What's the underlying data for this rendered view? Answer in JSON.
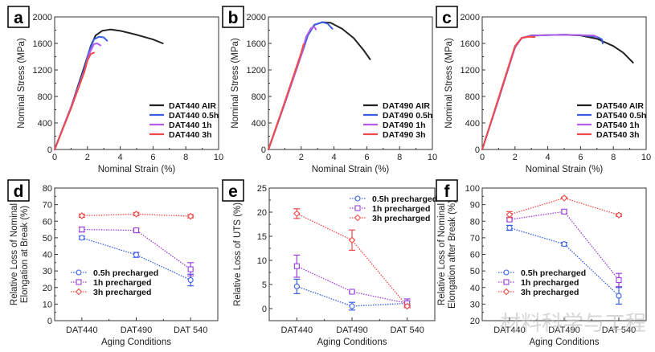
{
  "panels_meta": {
    "watermark": "材料科学与工程"
  },
  "chart_data": [
    {
      "id": "a",
      "panel_label": "a",
      "type": "line",
      "xlabel": "Nominal Strain (%)",
      "ylabel": "Nominal Stress (MPa)",
      "xlim": [
        0,
        10
      ],
      "ylim": [
        0,
        2000
      ],
      "xticks": [
        0,
        2,
        4,
        6,
        8,
        10
      ],
      "yticks": [
        0,
        400,
        800,
        1200,
        1600,
        2000
      ],
      "legend_position": "bottom-right",
      "series": [
        {
          "name": "DAT440 AIR",
          "color": "#222222",
          "x": [
            0,
            1,
            1.8,
            2.2,
            2.5,
            2.9,
            3.4,
            4,
            5,
            6,
            6.6
          ],
          "y": [
            0,
            640,
            1240,
            1560,
            1720,
            1790,
            1810,
            1790,
            1730,
            1660,
            1600
          ]
        },
        {
          "name": "DAT440 0.5h",
          "color": "#3a5fe5",
          "x": [
            0,
            1,
            1.8,
            2.1,
            2.4,
            2.7,
            3,
            3.2
          ],
          "y": [
            0,
            640,
            1200,
            1480,
            1660,
            1700,
            1690,
            1640
          ]
        },
        {
          "name": "DAT440 1h",
          "color": "#b25ee8",
          "x": [
            0,
            1,
            1.8,
            2.1,
            2.4,
            2.6,
            2.8
          ],
          "y": [
            0,
            640,
            1180,
            1440,
            1590,
            1600,
            1570
          ]
        },
        {
          "name": "DAT440 3h",
          "color": "#f04a4a",
          "x": [
            0,
            1,
            1.8,
            2.0,
            2.2,
            2.4
          ],
          "y": [
            0,
            620,
            1160,
            1340,
            1440,
            1460
          ]
        }
      ]
    },
    {
      "id": "b",
      "panel_label": "b",
      "type": "line",
      "xlabel": "Nominal Strain (%)",
      "ylabel": "Nominal Stress (MPa)",
      "xlim": [
        0,
        10
      ],
      "ylim": [
        0,
        2000
      ],
      "xticks": [
        0,
        2,
        4,
        6,
        8,
        10
      ],
      "yticks": [
        0,
        400,
        800,
        1200,
        1600,
        2000
      ],
      "legend_position": "bottom-right",
      "series": [
        {
          "name": "DAT490 AIR",
          "color": "#222222",
          "x": [
            0,
            1,
            2,
            2.4,
            2.8,
            3.3,
            3.8,
            4.5,
            5.2,
            5.8,
            6.2
          ],
          "y": [
            0,
            700,
            1420,
            1720,
            1880,
            1920,
            1910,
            1820,
            1680,
            1500,
            1360
          ]
        },
        {
          "name": "DAT490 0.5h",
          "color": "#3a5fe5",
          "x": [
            0,
            1,
            2,
            2.4,
            2.8,
            3.3,
            3.6,
            3.9
          ],
          "y": [
            0,
            700,
            1420,
            1720,
            1880,
            1920,
            1900,
            1820
          ]
        },
        {
          "name": "DAT490 1h",
          "color": "#b25ee8",
          "x": [
            0,
            1,
            2,
            2.3,
            2.6,
            2.8,
            2.9
          ],
          "y": [
            0,
            700,
            1420,
            1700,
            1830,
            1850,
            1810
          ]
        },
        {
          "name": "DAT490 3h",
          "color": "#f04a4a",
          "x": [
            0,
            1,
            2,
            2.15
          ],
          "y": [
            0,
            720,
            1460,
            1590
          ]
        }
      ]
    },
    {
      "id": "c",
      "panel_label": "c",
      "type": "line",
      "xlabel": "Nominal Strain (%)",
      "ylabel": "Nominal Stress (MPa)",
      "xlim": [
        0,
        10
      ],
      "ylim": [
        0,
        2000
      ],
      "xticks": [
        0,
        2,
        4,
        6,
        8,
        10
      ],
      "yticks": [
        0,
        400,
        800,
        1200,
        1600,
        2000
      ],
      "legend_position": "bottom-right",
      "series": [
        {
          "name": "DAT540 AIR",
          "color": "#222222",
          "x": [
            0,
            1,
            2,
            2.4,
            3,
            4,
            5,
            6,
            7,
            8,
            8.6,
            9.2
          ],
          "y": [
            0,
            760,
            1540,
            1680,
            1720,
            1725,
            1730,
            1720,
            1670,
            1560,
            1460,
            1310
          ]
        },
        {
          "name": "DAT540 0.5h",
          "color": "#3a5fe5",
          "x": [
            0,
            1,
            2,
            2.4,
            3,
            4,
            5,
            6,
            7,
            7.3,
            7.35
          ],
          "y": [
            0,
            760,
            1540,
            1680,
            1715,
            1725,
            1730,
            1725,
            1700,
            1660,
            1600
          ]
        },
        {
          "name": "DAT540 1h",
          "color": "#b25ee8",
          "x": [
            0,
            1,
            2,
            2.4,
            3,
            4,
            5,
            6,
            6.8,
            7.0
          ],
          "y": [
            0,
            760,
            1540,
            1680,
            1715,
            1725,
            1730,
            1725,
            1720,
            1700
          ]
        },
        {
          "name": "DAT540 3h",
          "color": "#f04a4a",
          "x": [
            0,
            1,
            2,
            2.4,
            2.8,
            3.2
          ],
          "y": [
            0,
            780,
            1560,
            1680,
            1700,
            1695
          ]
        }
      ]
    },
    {
      "id": "d",
      "panel_label": "d",
      "type": "line",
      "xlabel": "Aging Conditions",
      "ylabel": "Relative Loss of Nominal Elongation at Break (%)",
      "ylabel_lines": [
        "Relative Loss of Nominal",
        "Elongation at Break (%)"
      ],
      "categories": [
        "DAT440",
        "DAT490",
        "DAT 540"
      ],
      "ylim": [
        0,
        80
      ],
      "yticks": [
        0,
        10,
        20,
        30,
        40,
        50,
        60,
        70,
        80
      ],
      "legend_position": "bottom-left",
      "series": [
        {
          "name": "0.5h precharged",
          "color": "#3a5fe5",
          "marker": "circle",
          "values": [
            50,
            39.7,
            24.5
          ],
          "errors": [
            1,
            1.5,
            3.5
          ]
        },
        {
          "name": "1h precharged",
          "color": "#9b3fd8",
          "marker": "square",
          "values": [
            55,
            54.5,
            31
          ],
          "errors": [
            1.5,
            1,
            4
          ]
        },
        {
          "name": "3h precharged",
          "color": "#f04a4a",
          "marker": "diamond",
          "values": [
            63.3,
            64.3,
            63
          ],
          "errors": [
            1,
            1,
            1
          ]
        }
      ]
    },
    {
      "id": "e",
      "panel_label": "e",
      "type": "line",
      "xlabel": "Aging Conditions",
      "ylabel": "Relative Loss of UTS (%)",
      "ylabel_lines": [
        "Relative Loss of UTS (%)"
      ],
      "categories": [
        "DAT440",
        "DAT490",
        "DAT 540"
      ],
      "ylim": [
        -2.5,
        25
      ],
      "yticks": [
        0,
        5,
        10,
        15,
        20,
        25
      ],
      "legend_position": "top-right",
      "series": [
        {
          "name": "0.5h precharged",
          "color": "#3a5fe5",
          "marker": "circle",
          "values": [
            4.6,
            0.5,
            1.1
          ],
          "errors": [
            1.5,
            0.8,
            0.5
          ]
        },
        {
          "name": "1h precharged",
          "color": "#9b3fd8",
          "marker": "square",
          "values": [
            8.8,
            3.5,
            1.1
          ],
          "errors": [
            2.3,
            0.2,
            0.9
          ]
        },
        {
          "name": "3h precharged",
          "color": "#f04a4a",
          "marker": "diamond",
          "values": [
            19.7,
            14.2,
            0.5
          ],
          "errors": [
            1,
            2.1,
            0.3
          ]
        }
      ]
    },
    {
      "id": "f",
      "panel_label": "f",
      "type": "line",
      "xlabel": "Aging Conditions",
      "ylabel": "Relative Loss of Nominal Elongation after Break (%)",
      "ylabel_lines": [
        "Relative Loss of Nominal",
        "Elongation after Break (%)"
      ],
      "categories": [
        "DAT440",
        "DAT490",
        "DAT 540"
      ],
      "ylim": [
        20,
        100
      ],
      "yticks": [
        20,
        30,
        40,
        50,
        60,
        70,
        80,
        90,
        100
      ],
      "legend_position": "bottom-left",
      "series": [
        {
          "name": "0.5h precharged",
          "color": "#3a5fe5",
          "marker": "circle",
          "values": [
            76,
            66.2,
            35
          ],
          "errors": [
            1.5,
            1,
            5
          ]
        },
        {
          "name": "1h precharged",
          "color": "#9b3fd8",
          "marker": "square",
          "values": [
            81,
            85.8,
            44.5
          ],
          "errors": [
            1,
            1,
            4
          ]
        },
        {
          "name": "3h precharged",
          "color": "#f04a4a",
          "marker": "diamond",
          "values": [
            84,
            94,
            83.7
          ],
          "errors": [
            1.8,
            0.5,
            0.8
          ]
        }
      ]
    }
  ]
}
